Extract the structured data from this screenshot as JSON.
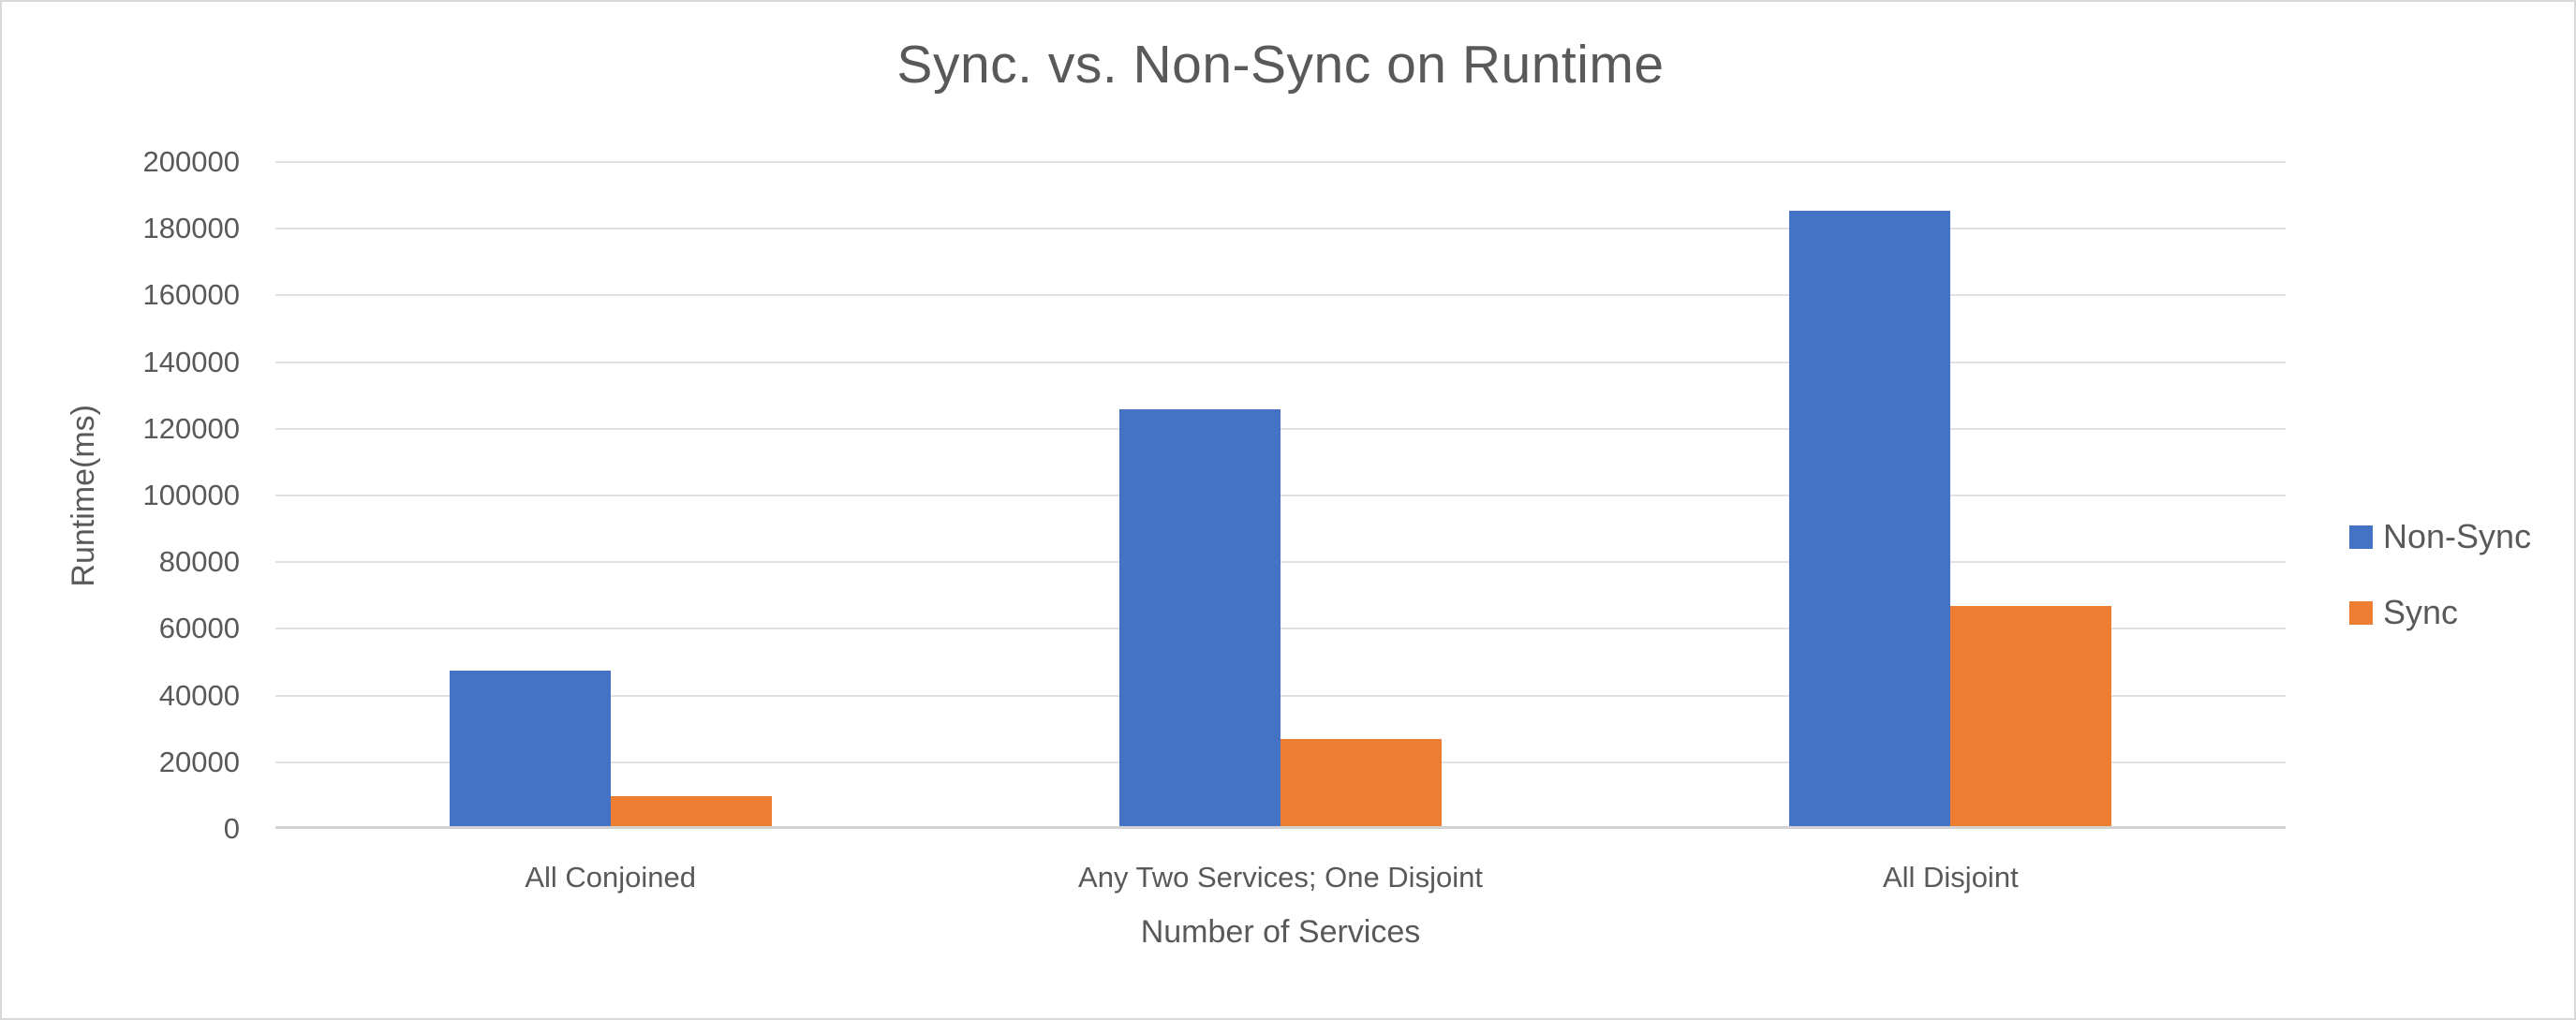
{
  "colors": {
    "background": "#FFFFFF",
    "border": "#D9D9D9",
    "text": "#595959",
    "gridline": "#E1E1E1",
    "axis_line": "#D2D2D2",
    "series_non_sync": "#4472C4",
    "series_sync": "#ED7D31"
  },
  "chart_data": {
    "type": "bar",
    "title": "Sync. vs. Non-Sync on Runtime",
    "xlabel": "Number of Services",
    "ylabel": "Runtime(ms)",
    "categories": [
      "All Conjoined",
      "Any Two Services; One Disjoint",
      "All Disjoint"
    ],
    "series": [
      {
        "name": "Non-Sync",
        "color": "#4472C4",
        "values": [
          46500,
          125000,
          184500
        ]
      },
      {
        "name": "Sync",
        "color": "#ED7D31",
        "values": [
          9000,
          26000,
          66000
        ]
      }
    ],
    "ylim": [
      0,
      200000
    ],
    "yticks": [
      0,
      20000,
      40000,
      60000,
      80000,
      100000,
      120000,
      140000,
      160000,
      180000,
      200000
    ],
    "grid": true,
    "legend_position": "right"
  }
}
